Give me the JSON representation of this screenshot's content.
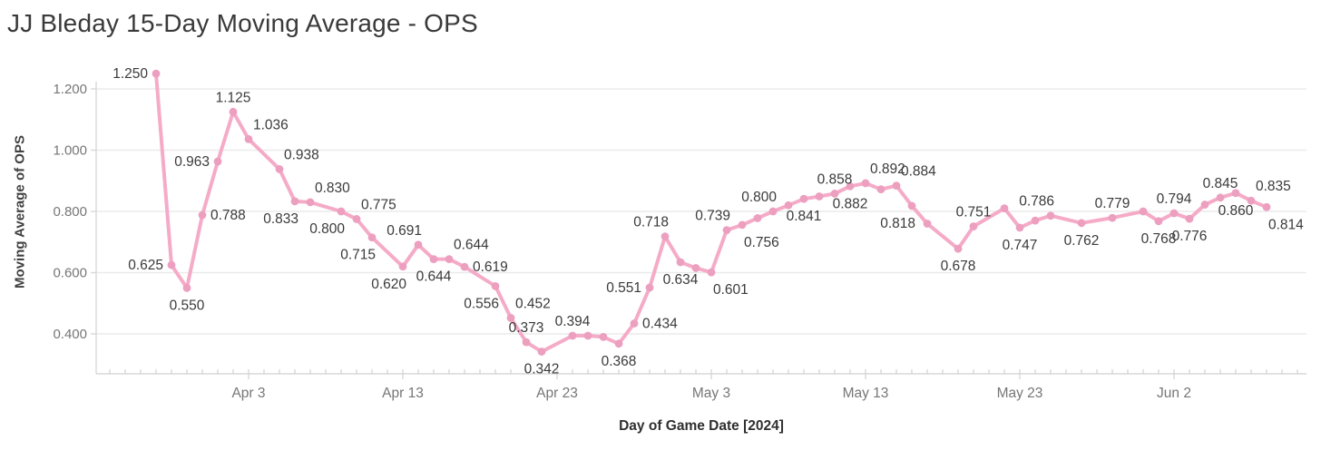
{
  "title": "JJ Bleday 15-Day Moving Average - OPS",
  "colors": {
    "line": "#F5ABC7",
    "marker": "#EC9FBF",
    "data_label": "#3a3a3a",
    "grid": "#ebebeb",
    "axis": "#d8d8d8",
    "minor_tick": "#c9c9c9",
    "tick_label": "#767676",
    "title": "#3a3a3a",
    "background": "#ffffff"
  },
  "chart_data": {
    "type": "line",
    "title": "JJ Bleday 15-Day Moving Average - OPS",
    "xlabel": "Day of Game Date [2024]",
    "ylabel": "Moving Average of OPS",
    "grid": "horizontal-only",
    "legend": "none",
    "y_axis": {
      "ticks": [
        {
          "value": 1.2,
          "label": "1.200"
        },
        {
          "value": 1.0,
          "label": "1.000"
        },
        {
          "value": 0.8,
          "label": "0.800"
        },
        {
          "value": 0.6,
          "label": "0.600"
        },
        {
          "value": 0.4,
          "label": "0.400"
        }
      ],
      "ylim": [
        0.3,
        1.29
      ]
    },
    "x_axis": {
      "ticks": [
        {
          "day": 6,
          "label": "Apr 3"
        },
        {
          "day": 16,
          "label": "Apr 13"
        },
        {
          "day": 26,
          "label": "Apr 23"
        },
        {
          "day": 36,
          "label": "May 3"
        },
        {
          "day": 46,
          "label": "May 13"
        },
        {
          "day": 56,
          "label": "May 23"
        },
        {
          "day": 66,
          "label": "Jun 2"
        }
      ],
      "day_range": [
        -3,
        74
      ]
    },
    "points": [
      {
        "day": 0,
        "value": 1.25,
        "label": "1.250",
        "pos": "left"
      },
      {
        "day": 1,
        "value": 0.625,
        "label": "0.625",
        "pos": "left"
      },
      {
        "day": 2,
        "value": 0.55,
        "label": "0.550",
        "pos": "below"
      },
      {
        "day": 3,
        "value": 0.788,
        "label": "0.788",
        "pos": "right"
      },
      {
        "day": 4,
        "value": 0.963,
        "label": "0.963",
        "pos": "left"
      },
      {
        "day": 5,
        "value": 1.125,
        "label": "1.125",
        "pos": "above"
      },
      {
        "day": 6,
        "value": 1.036,
        "label": "1.036",
        "pos": "above-right"
      },
      {
        "day": 8,
        "value": 0.938,
        "label": "0.938",
        "pos": "above-right"
      },
      {
        "day": 9,
        "value": 0.833,
        "label": "0.833",
        "pos": "below-left"
      },
      {
        "day": 10,
        "value": 0.83,
        "label": "0.830",
        "pos": "above-right"
      },
      {
        "day": 12,
        "value": 0.8,
        "label": "0.800",
        "pos": "below-left"
      },
      {
        "day": 13,
        "value": 0.775,
        "label": "0.775",
        "pos": "above-right"
      },
      {
        "day": 14,
        "value": 0.715,
        "label": "0.715",
        "pos": "below-left"
      },
      {
        "day": 16,
        "value": 0.62,
        "label": "0.620",
        "pos": "below-left"
      },
      {
        "day": 17,
        "value": 0.691,
        "label": "0.691",
        "pos": "above-left"
      },
      {
        "day": 18,
        "value": 0.644,
        "label": "0.644",
        "pos": "below"
      },
      {
        "day": 19,
        "value": 0.644,
        "label": "0.644",
        "pos": "above-right"
      },
      {
        "day": 20,
        "value": 0.619,
        "label": "0.619",
        "pos": "right"
      },
      {
        "day": 22,
        "value": 0.556,
        "label": "0.556",
        "pos": "below-left"
      },
      {
        "day": 23,
        "value": 0.452,
        "label": "0.452",
        "pos": "above-right"
      },
      {
        "day": 24,
        "value": 0.373,
        "label": "0.373",
        "pos": "above"
      },
      {
        "day": 25,
        "value": 0.342,
        "label": "0.342",
        "pos": "below"
      },
      {
        "day": 27,
        "value": 0.394,
        "label": "0.394",
        "pos": "above"
      },
      {
        "day": 28,
        "value": 0.394,
        "label": "",
        "pos": "above"
      },
      {
        "day": 29,
        "value": 0.39,
        "label": "",
        "pos": "above"
      },
      {
        "day": 30,
        "value": 0.368,
        "label": "0.368",
        "pos": "below"
      },
      {
        "day": 31,
        "value": 0.434,
        "label": "0.434",
        "pos": "right"
      },
      {
        "day": 32,
        "value": 0.551,
        "label": "0.551",
        "pos": "left"
      },
      {
        "day": 33,
        "value": 0.718,
        "label": "0.718",
        "pos": "above-left"
      },
      {
        "day": 34,
        "value": 0.634,
        "label": "0.634",
        "pos": "below"
      },
      {
        "day": 35,
        "value": 0.615,
        "label": "",
        "pos": "below"
      },
      {
        "day": 36,
        "value": 0.601,
        "label": "0.601",
        "pos": "below-right"
      },
      {
        "day": 37,
        "value": 0.739,
        "label": "0.739",
        "pos": "above-left"
      },
      {
        "day": 38,
        "value": 0.756,
        "label": "0.756",
        "pos": "below-right"
      },
      {
        "day": 39,
        "value": 0.778,
        "label": "",
        "pos": "above"
      },
      {
        "day": 40,
        "value": 0.8,
        "label": "0.800",
        "pos": "above-left"
      },
      {
        "day": 41,
        "value": 0.82,
        "label": "",
        "pos": "above"
      },
      {
        "day": 42,
        "value": 0.841,
        "label": "0.841",
        "pos": "below"
      },
      {
        "day": 43,
        "value": 0.849,
        "label": "",
        "pos": "above"
      },
      {
        "day": 44,
        "value": 0.858,
        "label": "0.858",
        "pos": "above"
      },
      {
        "day": 45,
        "value": 0.882,
        "label": "0.882",
        "pos": "below"
      },
      {
        "day": 46,
        "value": 0.892,
        "label": "0.892",
        "pos": "above-right"
      },
      {
        "day": 47,
        "value": 0.872,
        "label": "",
        "pos": "below"
      },
      {
        "day": 48,
        "value": 0.884,
        "label": "0.884",
        "pos": "above-right"
      },
      {
        "day": 49,
        "value": 0.818,
        "label": "0.818",
        "pos": "below-left"
      },
      {
        "day": 50,
        "value": 0.76,
        "label": "",
        "pos": "below"
      },
      {
        "day": 52,
        "value": 0.678,
        "label": "0.678",
        "pos": "below"
      },
      {
        "day": 53,
        "value": 0.751,
        "label": "0.751",
        "pos": "above"
      },
      {
        "day": 55,
        "value": 0.81,
        "label": "",
        "pos": "above"
      },
      {
        "day": 56,
        "value": 0.747,
        "label": "0.747",
        "pos": "below"
      },
      {
        "day": 57,
        "value": 0.77,
        "label": "",
        "pos": "below"
      },
      {
        "day": 58,
        "value": 0.786,
        "label": "0.786",
        "pos": "above-left"
      },
      {
        "day": 60,
        "value": 0.762,
        "label": "0.762",
        "pos": "below"
      },
      {
        "day": 62,
        "value": 0.779,
        "label": "0.779",
        "pos": "above"
      },
      {
        "day": 64,
        "value": 0.8,
        "label": "",
        "pos": "above"
      },
      {
        "day": 65,
        "value": 0.768,
        "label": "0.768",
        "pos": "below"
      },
      {
        "day": 66,
        "value": 0.794,
        "label": "0.794",
        "pos": "above"
      },
      {
        "day": 67,
        "value": 0.776,
        "label": "0.776",
        "pos": "below"
      },
      {
        "day": 68,
        "value": 0.822,
        "label": "",
        "pos": "above"
      },
      {
        "day": 69,
        "value": 0.845,
        "label": "0.845",
        "pos": "above"
      },
      {
        "day": 70,
        "value": 0.86,
        "label": "0.860",
        "pos": "below"
      },
      {
        "day": 71,
        "value": 0.835,
        "label": "0.835",
        "pos": "above-right"
      },
      {
        "day": 72,
        "value": 0.814,
        "label": "0.814",
        "pos": "below-right"
      }
    ]
  }
}
